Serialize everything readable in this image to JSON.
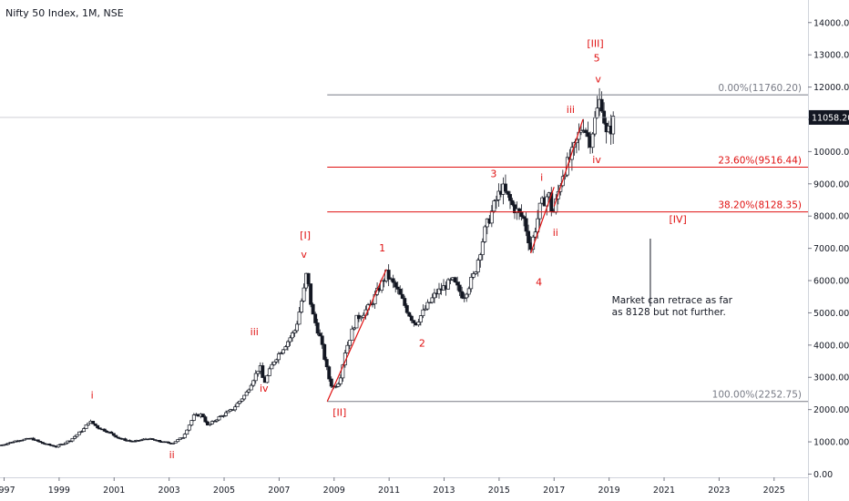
{
  "chart_data": {
    "type": "candlestick",
    "title": "Nifty 50 Index, 1M, NSE",
    "y_axis": {
      "min": -100,
      "max": 14700,
      "ticks": [
        0,
        1000,
        2000,
        3000,
        4000,
        5000,
        6000,
        7000,
        8000,
        9000,
        10000,
        11000,
        12000,
        13000,
        14000
      ],
      "tick_labels": [
        "0.00",
        "1000.00",
        "2000.00",
        "3000.00",
        "4000.00",
        "5000.00",
        "6000.00",
        "7000.00",
        "8000.00",
        "9000.00",
        "10000.00",
        "11000.00",
        "12000.00",
        "13000.00",
        "14000.00"
      ],
      "position": "right"
    },
    "x_axis": {
      "min": 1996.85,
      "max": 2026.2,
      "ticks": [
        1997,
        1999,
        2001,
        2003,
        2005,
        2007,
        2009,
        2011,
        2013,
        2015,
        2017,
        2019,
        2021,
        2023,
        2025
      ],
      "tick_labels": [
        "1997",
        "1999",
        "2001",
        "2003",
        "2005",
        "2007",
        "2009",
        "2011",
        "2013",
        "2015",
        "2017",
        "2019",
        "2021",
        "2023",
        "2025"
      ]
    },
    "last_price": {
      "value": 11058.2,
      "label": "11058.20",
      "color": "#131722"
    },
    "price_path": [
      [
        1996.9,
        900
      ],
      [
        1997.5,
        1050
      ],
      [
        1998.0,
        1100
      ],
      [
        1998.4,
        950
      ],
      [
        1998.9,
        850
      ],
      [
        1999.4,
        1050
      ],
      [
        1999.9,
        1400
      ],
      [
        2000.1,
        1650
      ],
      [
        2000.4,
        1450
      ],
      [
        2000.8,
        1300
      ],
      [
        2001.2,
        1100
      ],
      [
        2001.7,
        1000
      ],
      [
        2002.2,
        1100
      ],
      [
        2002.7,
        1000
      ],
      [
        2003.1,
        950
      ],
      [
        2003.5,
        1150
      ],
      [
        2003.9,
        1800
      ],
      [
        2004.2,
        1850
      ],
      [
        2004.4,
        1500
      ],
      [
        2004.8,
        1750
      ],
      [
        2005.3,
        2000
      ],
      [
        2005.8,
        2500
      ],
      [
        2006.3,
        3350
      ],
      [
        2006.45,
        2800
      ],
      [
        2006.8,
        3500
      ],
      [
        2007.3,
        4100
      ],
      [
        2007.6,
        4500
      ],
      [
        2007.9,
        5700
      ],
      [
        2008.0,
        6250
      ],
      [
        2008.2,
        5000
      ],
      [
        2008.5,
        4200
      ],
      [
        2008.8,
        3000
      ],
      [
        2008.95,
        2650
      ],
      [
        2009.2,
        2900
      ],
      [
        2009.4,
        3800
      ],
      [
        2009.8,
        4800
      ],
      [
        2010.3,
        5200
      ],
      [
        2010.9,
        6200
      ],
      [
        2011.3,
        5700
      ],
      [
        2011.7,
        5000
      ],
      [
        2011.95,
        4650
      ],
      [
        2012.3,
        5100
      ],
      [
        2012.7,
        5600
      ],
      [
        2013.3,
        6000
      ],
      [
        2013.7,
        5500
      ],
      [
        2014.1,
        6200
      ],
      [
        2014.5,
        7600
      ],
      [
        2014.9,
        8500
      ],
      [
        2015.1,
        8900
      ],
      [
        2015.5,
        8300
      ],
      [
        2015.9,
        7900
      ],
      [
        2016.15,
        7000
      ],
      [
        2016.5,
        8300
      ],
      [
        2016.8,
        8700
      ],
      [
        2016.95,
        8000
      ],
      [
        2017.3,
        9300
      ],
      [
        2017.7,
        10000
      ],
      [
        2018.05,
        10900
      ],
      [
        2018.3,
        10300
      ],
      [
        2018.6,
        11400
      ],
      [
        2018.7,
        11700
      ],
      [
        2018.9,
        10500
      ],
      [
        2019.05,
        10700
      ],
      [
        2019.2,
        11058
      ]
    ],
    "fib_levels": [
      {
        "label": "0.00%(11760.20)",
        "value": 11760.2,
        "color": "#787b86"
      },
      {
        "label": "23.60%(9516.44)",
        "value": 9516.44,
        "color": "#e01010"
      },
      {
        "label": "38.20%(8128.35)",
        "value": 8128.35,
        "color": "#e01010"
      },
      {
        "label": "100.00%(2252.75)",
        "value": 2252.75,
        "color": "#787b86"
      }
    ],
    "wave_labels": [
      {
        "text": "i",
        "x": 2000.2,
        "y": 2350
      },
      {
        "text": "ii",
        "x": 2003.1,
        "y": 500
      },
      {
        "text": "iii",
        "x": 2006.1,
        "y": 4300
      },
      {
        "text": "iv",
        "x": 2006.45,
        "y": 2550
      },
      {
        "text": "v",
        "x": 2007.9,
        "y": 6700
      },
      {
        "text": "[I]",
        "x": 2007.95,
        "y": 7300
      },
      {
        "text": "[II]",
        "x": 2009.2,
        "y": 1800
      },
      {
        "text": "1",
        "x": 2010.75,
        "y": 6900
      },
      {
        "text": "2",
        "x": 2012.2,
        "y": 3950
      },
      {
        "text": "3",
        "x": 2014.8,
        "y": 9200
      },
      {
        "text": "4",
        "x": 2016.45,
        "y": 5850
      },
      {
        "text": "i",
        "x": 2016.55,
        "y": 9100
      },
      {
        "text": "ii",
        "x": 2017.05,
        "y": 7380
      },
      {
        "text": "iii",
        "x": 2017.6,
        "y": 11200
      },
      {
        "text": "iv",
        "x": 2018.55,
        "y": 9650
      },
      {
        "text": "v",
        "x": 2018.6,
        "y": 12150
      },
      {
        "text": "5",
        "x": 2018.55,
        "y": 12800
      },
      {
        "text": "[III]",
        "x": 2018.5,
        "y": 13250
      },
      {
        "text": "[IV]",
        "x": 2021.5,
        "y": 7800
      }
    ],
    "wave_lines": [
      {
        "x1": 2008.75,
        "y1": 2252.75,
        "x2": 2010.9,
        "y2": 6350
      },
      {
        "x1": 2016.15,
        "y1": 6850,
        "x2": 2017.0,
        "y2": 8900
      },
      {
        "x1": 2017.0,
        "y1": 8300,
        "x2": 2018.05,
        "y2": 11000
      }
    ],
    "annotation": {
      "lines": [
        "Market can retrace as far",
        "as 8128 but not further."
      ],
      "x": 2019.1,
      "y": 5300,
      "pointer": {
        "x": 2020.5,
        "y1": 7300,
        "y2": 5200
      }
    },
    "colors": {
      "up": "#131722",
      "down": "#131722",
      "axis": "#131722",
      "label": "#e01010"
    }
  }
}
